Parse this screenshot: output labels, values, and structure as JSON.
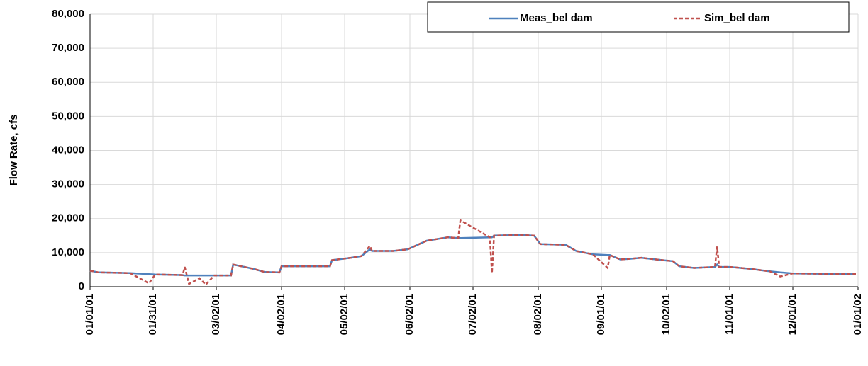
{
  "chart_data": {
    "type": "line",
    "y_label": "Flow Rate, cfs",
    "x": [
      "01/01/01",
      "01/05/01",
      "01/20/01",
      "01/29/01",
      "02/01/01",
      "02/14/01",
      "02/15/01",
      "02/17/01",
      "02/22/01",
      "02/25/01",
      "03/01/01",
      "03/09/01",
      "03/10/01",
      "03/20/01",
      "03/25/01",
      "04/01/01",
      "04/02/01",
      "04/20/01",
      "04/25/01",
      "04/26/01",
      "05/05/01",
      "05/10/01",
      "05/14/01",
      "05/15/01",
      "05/25/01",
      "06/01/01",
      "06/10/01",
      "06/20/01",
      "06/25/01",
      "06/26/01",
      "07/10/01",
      "07/11/01",
      "07/12/01",
      "07/25/01",
      "07/31/01",
      "08/03/01",
      "08/15/01",
      "08/20/01",
      "08/28/01",
      "09/04/01",
      "09/05/01",
      "09/10/01",
      "09/15/01",
      "09/20/01",
      "09/30/01",
      "10/05/01",
      "10/08/01",
      "10/15/01",
      "10/25/01",
      "10/26/01",
      "10/27/01",
      "11/01/01",
      "11/10/01",
      "11/20/01",
      "11/25/01",
      "12/01/01",
      "12/15/01",
      "12/31/01"
    ],
    "series": [
      {
        "name": "Meas_bel dam",
        "color": "#4f81bd",
        "dash": false,
        "values": [
          4700,
          4200,
          4000,
          3700,
          3600,
          3400,
          3300,
          3300,
          3300,
          3300,
          3300,
          3300,
          6500,
          5200,
          4300,
          4200,
          6000,
          6000,
          6000,
          7800,
          8500,
          9000,
          11000,
          10500,
          10500,
          11000,
          13500,
          14500,
          14300,
          14300,
          14500,
          14500,
          15000,
          15200,
          15000,
          12500,
          12300,
          10500,
          9500,
          9300,
          9300,
          8000,
          8200,
          8500,
          7800,
          7500,
          6000,
          5500,
          5800,
          6500,
          5800,
          5800,
          5300,
          4500,
          4200,
          3900,
          3800,
          3700
        ]
      },
      {
        "name": "Sim_bel dam",
        "color": "#c0504d",
        "dash": true,
        "values": [
          4700,
          4200,
          4000,
          1000,
          3600,
          3400,
          5800,
          800,
          2500,
          600,
          3300,
          3300,
          6500,
          5200,
          4300,
          4200,
          6000,
          6000,
          6000,
          7800,
          8500,
          9000,
          12000,
          10500,
          10500,
          11000,
          13500,
          14500,
          14300,
          19500,
          14500,
          4000,
          15000,
          15200,
          15000,
          12500,
          12300,
          10500,
          9500,
          5500,
          9300,
          8000,
          8200,
          8500,
          7800,
          7500,
          6000,
          5500,
          5800,
          11800,
          5800,
          5800,
          5300,
          4500,
          3000,
          3900,
          3800,
          3700
        ]
      }
    ],
    "xlim": [
      "01/01/01",
      "01/01/02"
    ],
    "xticks": [
      "01/01/01",
      "01/31/01",
      "03/02/01",
      "04/02/01",
      "05/02/01",
      "06/02/01",
      "07/02/01",
      "08/02/01",
      "09/01/01",
      "10/02/01",
      "11/01/01",
      "12/01/01",
      "01/01/02"
    ],
    "ylim": [
      0,
      80000
    ],
    "yticks": [
      0,
      {
        "value": 10000,
        "label": "10,000"
      },
      {
        "value": 20000,
        "label": "20,000"
      },
      {
        "value": 30000,
        "label": "30,000"
      },
      {
        "value": 40000,
        "label": "40,000"
      },
      {
        "value": 50000,
        "label": "50,000"
      },
      {
        "value": 60000,
        "label": "60,000"
      },
      {
        "value": 70000,
        "label": "70,000"
      },
      {
        "value": 80000,
        "label": "80,000"
      }
    ],
    "grid": true,
    "legend": "top-right"
  }
}
